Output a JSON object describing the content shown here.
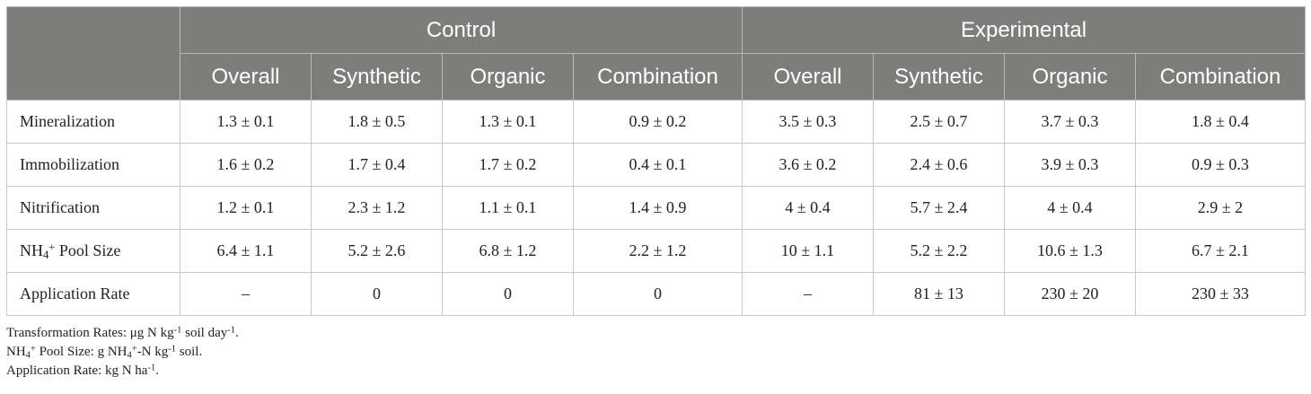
{
  "table": {
    "groups": [
      {
        "label": "Control",
        "span": 4
      },
      {
        "label": "Experimental",
        "span": 4
      }
    ],
    "subheaders": [
      "Overall",
      "Synthetic",
      "Organic",
      "Combination",
      "Overall",
      "Synthetic",
      "Organic",
      "Combination"
    ],
    "rows": [
      {
        "label": "Mineralization",
        "values": [
          "1.3 ± 0.1",
          "1.8 ± 0.5",
          "1.3 ± 0.1",
          "0.9 ± 0.2",
          "3.5 ± 0.3",
          "2.5 ± 0.7",
          "3.7 ± 0.3",
          "1.8 ± 0.4"
        ]
      },
      {
        "label": "Immobilization",
        "values": [
          "1.6 ± 0.2",
          "1.7 ± 0.4",
          "1.7 ± 0.2",
          "0.4 ± 0.1",
          "3.6 ± 0.2",
          "2.4 ± 0.6",
          "3.9 ± 0.3",
          "0.9 ± 0.3"
        ]
      },
      {
        "label": "Nitrification",
        "values": [
          "1.2 ± 0.1",
          "2.3 ± 1.2",
          "1.1 ± 0.1",
          "1.4 ± 0.9",
          "4 ± 0.4",
          "5.7 ± 2.4",
          "4 ± 0.4",
          "2.9 ± 2"
        ]
      },
      {
        "label_parts": [
          "NH",
          "4",
          "+",
          " Pool Size"
        ],
        "values": [
          "6.4 ± 1.1",
          "5.2 ± 2.6",
          "6.8 ± 1.2",
          "2.2 ± 1.2",
          "10 ± 1.1",
          "5.2 ± 2.2",
          "10.6 ± 1.3",
          "6.7 ± 2.1"
        ]
      },
      {
        "label": "Application Rate",
        "values": [
          "–",
          "0",
          "0",
          "0",
          "–",
          "81 ± 13",
          "230 ± 20",
          "230 ± 33"
        ]
      }
    ]
  },
  "notes": {
    "transformation": {
      "prefix": "Transformation Rates: μg N kg",
      "exp1": "-1",
      "mid": " soil day",
      "exp2": "-1",
      "suffix": "."
    },
    "pool": {
      "a": "NH",
      "sub1": "4",
      "sup1": "+",
      "b": " Pool Size: g NH",
      "sub2": "4",
      "sup2": "+",
      "c": "-N kg",
      "sup3": "-1",
      "d": " soil."
    },
    "application": {
      "prefix": "Application Rate: kg N ha",
      "exp": "-1",
      "suffix": "."
    }
  }
}
